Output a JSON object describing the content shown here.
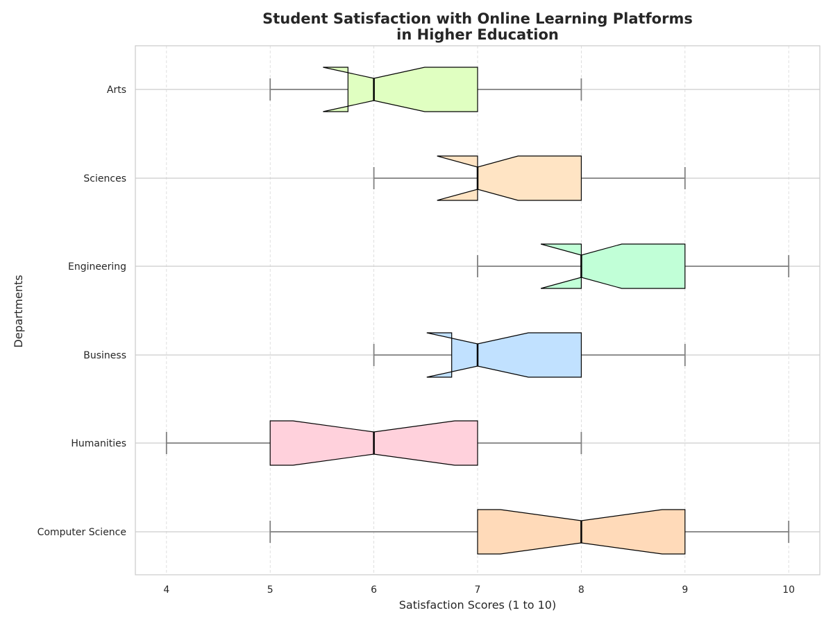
{
  "chart_data": {
    "type": "boxplot",
    "orientation": "horizontal",
    "notched": true,
    "title": "Student Satisfaction with Online Learning Platforms\nin Higher Education",
    "title_lines": [
      "Student Satisfaction with Online Learning Platforms",
      "in Higher Education"
    ],
    "xlabel": "Satisfaction Scores (1 to 10)",
    "ylabel": "Departments",
    "xlim": [
      3.7,
      10.3
    ],
    "xticks": [
      4,
      5,
      6,
      7,
      8,
      9,
      10
    ],
    "grid": true,
    "categories": [
      "Computer Science",
      "Humanities",
      "Business",
      "Engineering",
      "Sciences",
      "Arts"
    ],
    "boxes": [
      {
        "name": "Computer Science",
        "whisker_low": 5,
        "q1": 7,
        "median": 8,
        "q3": 9,
        "whisker_high": 10,
        "notch_low": 7.22,
        "notch_high": 8.78,
        "color": "#FFDAB9"
      },
      {
        "name": "Humanities",
        "whisker_low": 4,
        "q1": 5,
        "median": 6,
        "q3": 7,
        "whisker_high": 8,
        "notch_low": 5.22,
        "notch_high": 6.78,
        "color": "#FFD1DC"
      },
      {
        "name": "Business",
        "whisker_low": 6,
        "q1": 6.75,
        "median": 7,
        "q3": 8,
        "whisker_high": 9,
        "notch_low": 6.51,
        "notch_high": 7.49,
        "color": "#C1E1FF"
      },
      {
        "name": "Engineering",
        "whisker_low": 7,
        "q1": 8,
        "median": 8,
        "q3": 9,
        "whisker_high": 10,
        "notch_low": 7.61,
        "notch_high": 8.39,
        "color": "#C1FFD7"
      },
      {
        "name": "Sciences",
        "whisker_low": 6,
        "q1": 7,
        "median": 7,
        "q3": 8,
        "whisker_high": 9,
        "notch_low": 6.61,
        "notch_high": 7.39,
        "color": "#FFE4C4"
      },
      {
        "name": "Arts",
        "whisker_low": 5,
        "q1": 5.75,
        "median": 6,
        "q3": 7,
        "whisker_high": 8,
        "notch_low": 5.51,
        "notch_high": 6.49,
        "color": "#E0FFC1"
      }
    ],
    "colors": {
      "whisker": "#808080",
      "box_edge": "#000000",
      "median": "#000000",
      "grid": "#CCCCCC",
      "axes_edge": "#CCCCCC",
      "text": "#262626"
    }
  }
}
